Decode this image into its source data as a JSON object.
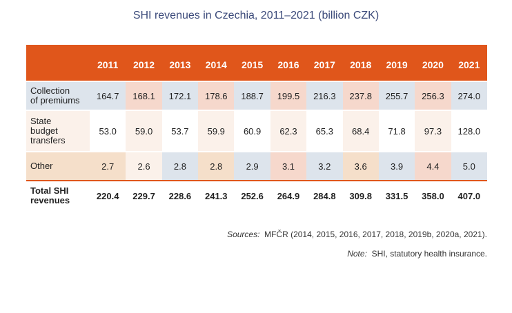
{
  "title": "SHI revenues in Czechia, 2011–2021 (billion CZK)",
  "table": {
    "years": [
      "2011",
      "2012",
      "2013",
      "2014",
      "2015",
      "2016",
      "2017",
      "2018",
      "2019",
      "2020",
      "2021"
    ],
    "rows": [
      {
        "label_lines": [
          "Collection",
          "of premiums"
        ],
        "values": [
          "164.7",
          "168.1",
          "172.1",
          "178.6",
          "188.7",
          "199.5",
          "216.3",
          "237.8",
          "255.7",
          "256.3",
          "274.0"
        ]
      },
      {
        "label_lines": [
          "State",
          "budget",
          "transfers"
        ],
        "values": [
          "53.0",
          "59.0",
          "53.7",
          "59.9",
          "60.9",
          "62.3",
          "65.3",
          "68.4",
          "71.8",
          "97.3",
          "128.0"
        ]
      },
      {
        "label_lines": [
          "Other"
        ],
        "values": [
          "2.7",
          "2.6",
          "2.8",
          "2.8",
          "2.9",
          "3.1",
          "3.2",
          "3.6",
          "3.9",
          "4.4",
          "5.0"
        ]
      },
      {
        "label_lines": [
          "Total SHI",
          "revenues"
        ],
        "values": [
          "220.4",
          "229.7",
          "228.6",
          "241.3",
          "252.6",
          "264.9",
          "284.8",
          "309.8",
          "331.5",
          "358.0",
          "407.0"
        ]
      }
    ]
  },
  "sources": {
    "lead": "Sources:",
    "text": "MFČR (2014, 2015, 2016, 2017, 2018, 2019b, 2020a, 2021)."
  },
  "note": {
    "lead": "Note:",
    "text": "SHI, statutory health insurance."
  },
  "colors": {
    "header": "#e0561b",
    "title": "#3b4a7a",
    "cell_blue": "#dde4ec",
    "cell_cream": "#fbf1ea",
    "cell_tan": "#f5dfca",
    "cell_pink": "#f6d8cc"
  }
}
